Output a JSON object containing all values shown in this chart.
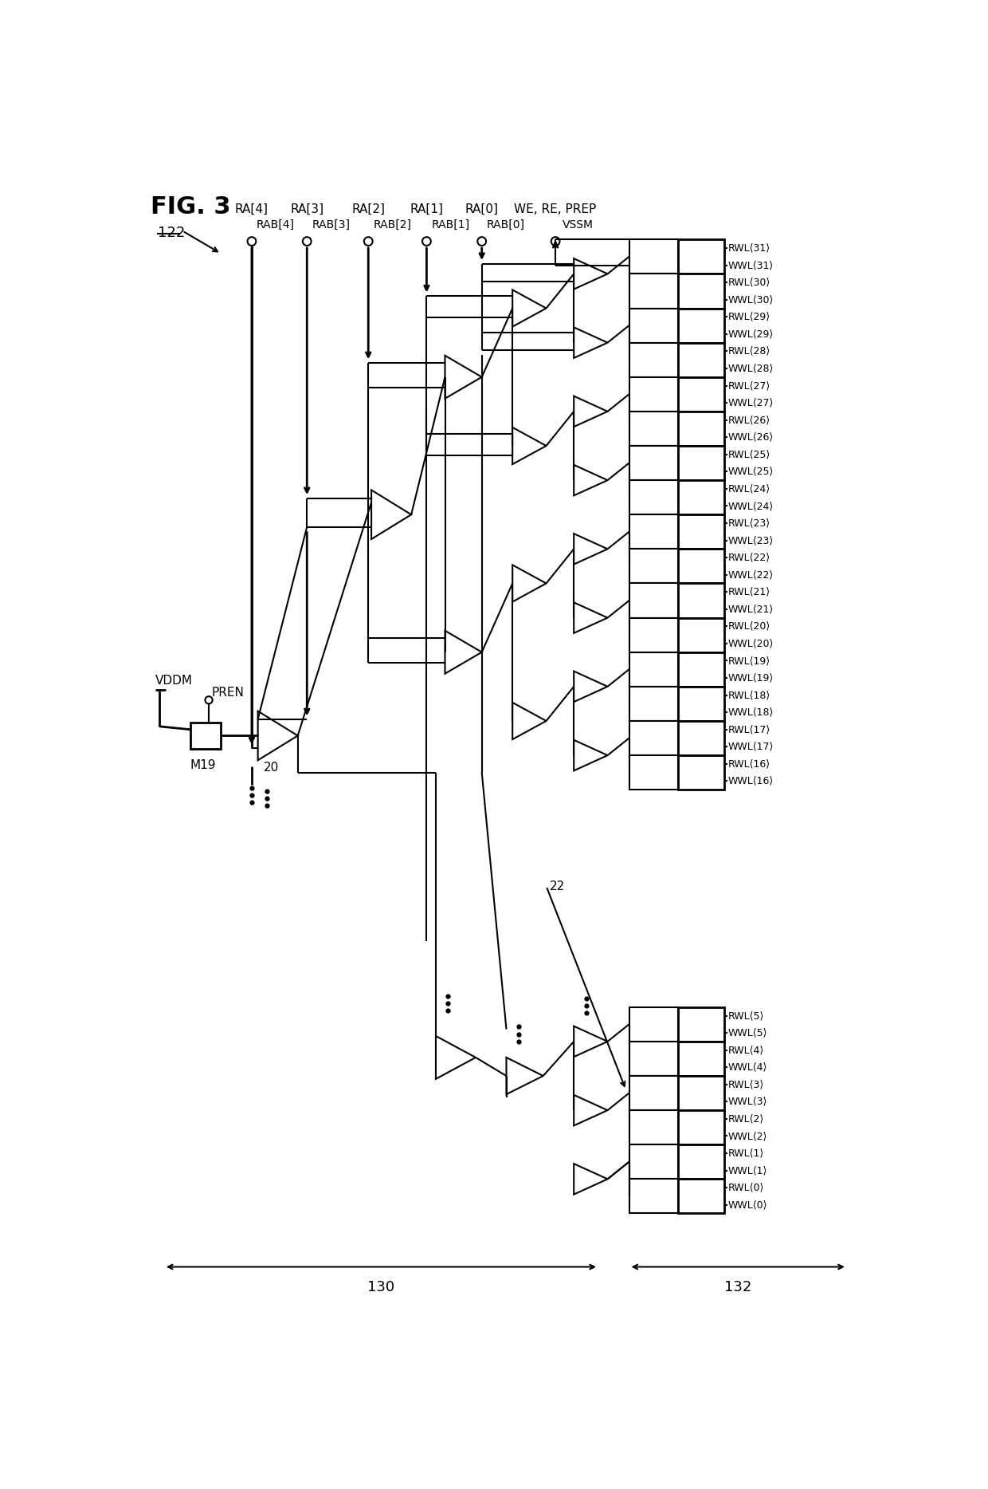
{
  "title": "FIG. 3",
  "fig_label": "122",
  "background": "#ffffff",
  "line_color": "#000000",
  "line_width": 1.5,
  "signal_inputs": [
    "RA[4]",
    "RA[3]",
    "RA[2]",
    "RA[1]",
    "RA[0]",
    "WE, RE, PREP"
  ],
  "signal_inputs_b": [
    "RAB[4]",
    "RAB[3]",
    "RAB[2]",
    "RAB[1]",
    "RAB[0]",
    "VSSM"
  ],
  "upper_outputs": [
    31,
    30,
    29,
    28,
    27,
    26,
    25,
    24,
    23,
    22,
    21,
    20,
    19,
    18,
    17,
    16
  ],
  "lower_outputs": [
    5,
    4,
    3,
    2,
    1,
    0
  ],
  "label_130": "130",
  "label_132": "132",
  "label_20": "20",
  "label_22": "22",
  "label_M19": "M19",
  "label_VDDM": "VDDM",
  "label_PREN": "PREN"
}
